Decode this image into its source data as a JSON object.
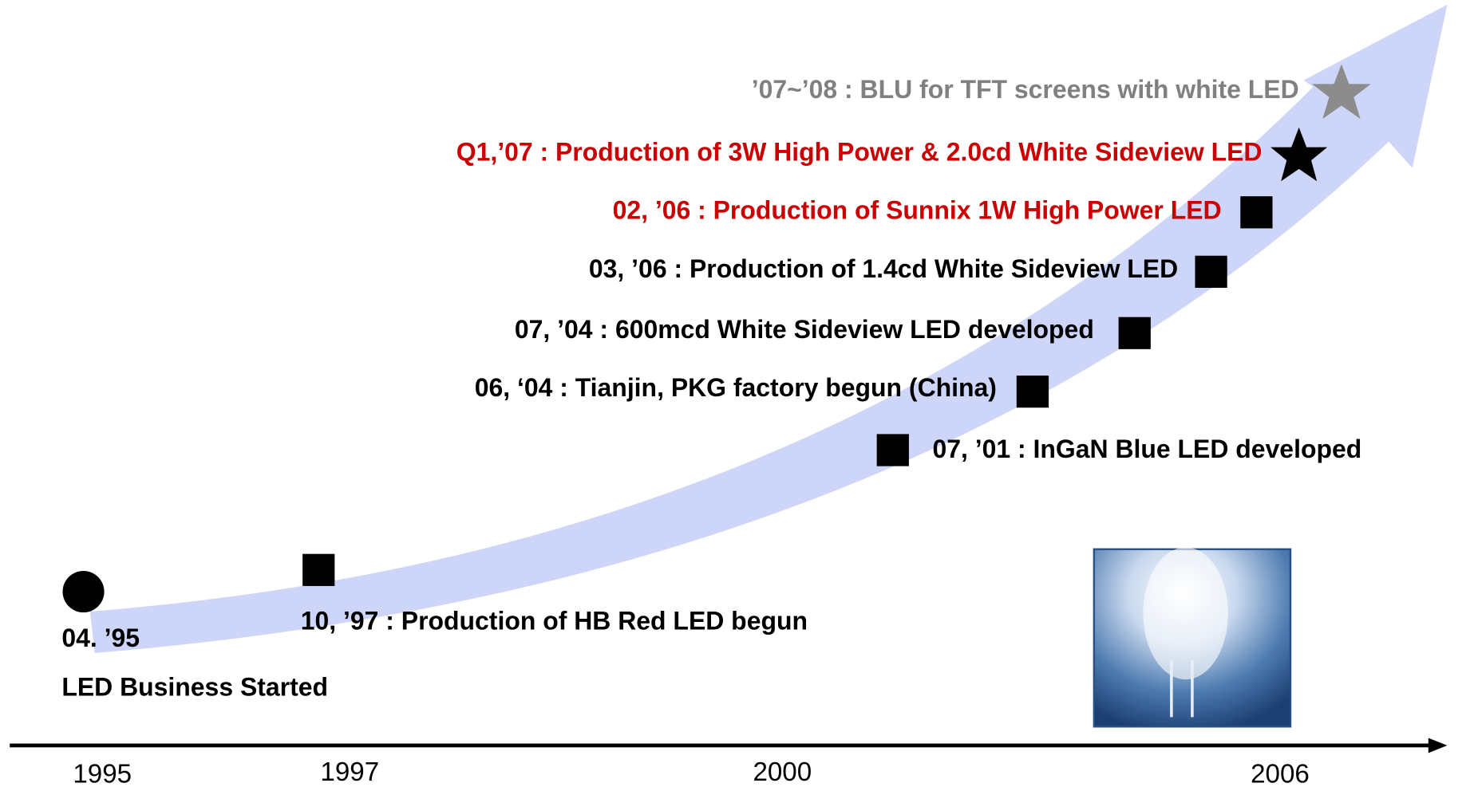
{
  "milestones": [
    {
      "label": "’07~’08 :  BLU for TFT screens with white LED"
    },
    {
      "label": "Q1,’07 : Production of 3W High Power & 2.0cd White Sideview LED"
    },
    {
      "label": "02, ’06 : Production of Sunnix 1W High Power LED"
    },
    {
      "label": "03, ’06 : Production of 1.4cd White Sideview LED"
    },
    {
      "label": "07, ’04 : 600mcd White Sideview LED developed"
    },
    {
      "label": "06, ‘04 : Tianjin, PKG factory begun (China)"
    },
    {
      "label": "07, ’01 : InGaN Blue LED developed"
    },
    {
      "label": "10, ’97 : Production of HB Red LED begun"
    }
  ],
  "start": {
    "date": "04. ’95",
    "label": "LED Business Started"
  },
  "axis": {
    "years": [
      "1995",
      "1997",
      "2000",
      "2006"
    ]
  }
}
